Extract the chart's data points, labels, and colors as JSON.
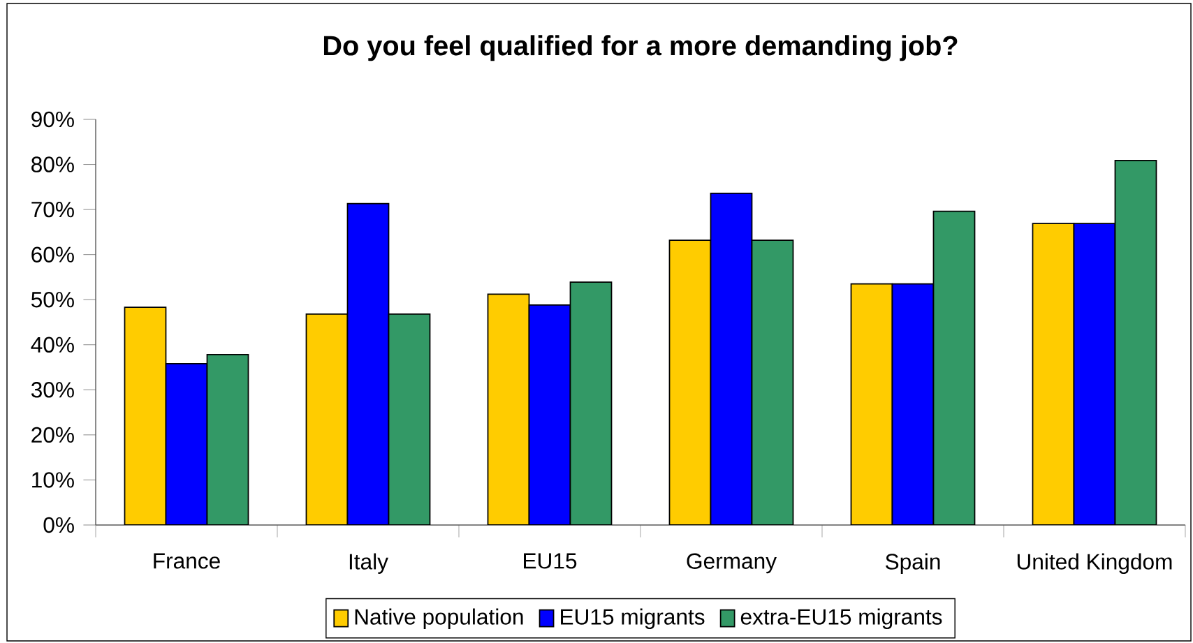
{
  "chart_data": {
    "type": "bar",
    "title": "Do you feel qualified for a more demanding job?",
    "categories": [
      "France",
      "Italy",
      "EU15",
      "Germany",
      "Spain",
      "United Kingdom"
    ],
    "series": [
      {
        "name": "Native population",
        "color": "#ffcc00",
        "values": [
          48.3,
          46.8,
          51.2,
          63.2,
          53.5,
          66.9
        ]
      },
      {
        "name": "EU15 migrants",
        "color": "#0000ff",
        "values": [
          35.8,
          71.3,
          48.8,
          73.6,
          53.5,
          66.9
        ]
      },
      {
        "name": "extra-EU15 migrants",
        "color": "#339966",
        "values": [
          37.8,
          46.8,
          53.9,
          63.2,
          69.6,
          80.9
        ]
      }
    ],
    "ylim": [
      0,
      90
    ],
    "yticks": [
      {
        "value": 0,
        "label": "0%"
      },
      {
        "value": 10,
        "label": "10%"
      },
      {
        "value": 20,
        "label": "20%"
      },
      {
        "value": 30,
        "label": "30%"
      },
      {
        "value": 40,
        "label": "40%"
      },
      {
        "value": 50,
        "label": "50%"
      },
      {
        "value": 60,
        "label": "60%"
      },
      {
        "value": 70,
        "label": "70%"
      },
      {
        "value": 80,
        "label": "80%"
      },
      {
        "value": 90,
        "label": "90%"
      }
    ],
    "grid": false,
    "legend": "bottom"
  }
}
